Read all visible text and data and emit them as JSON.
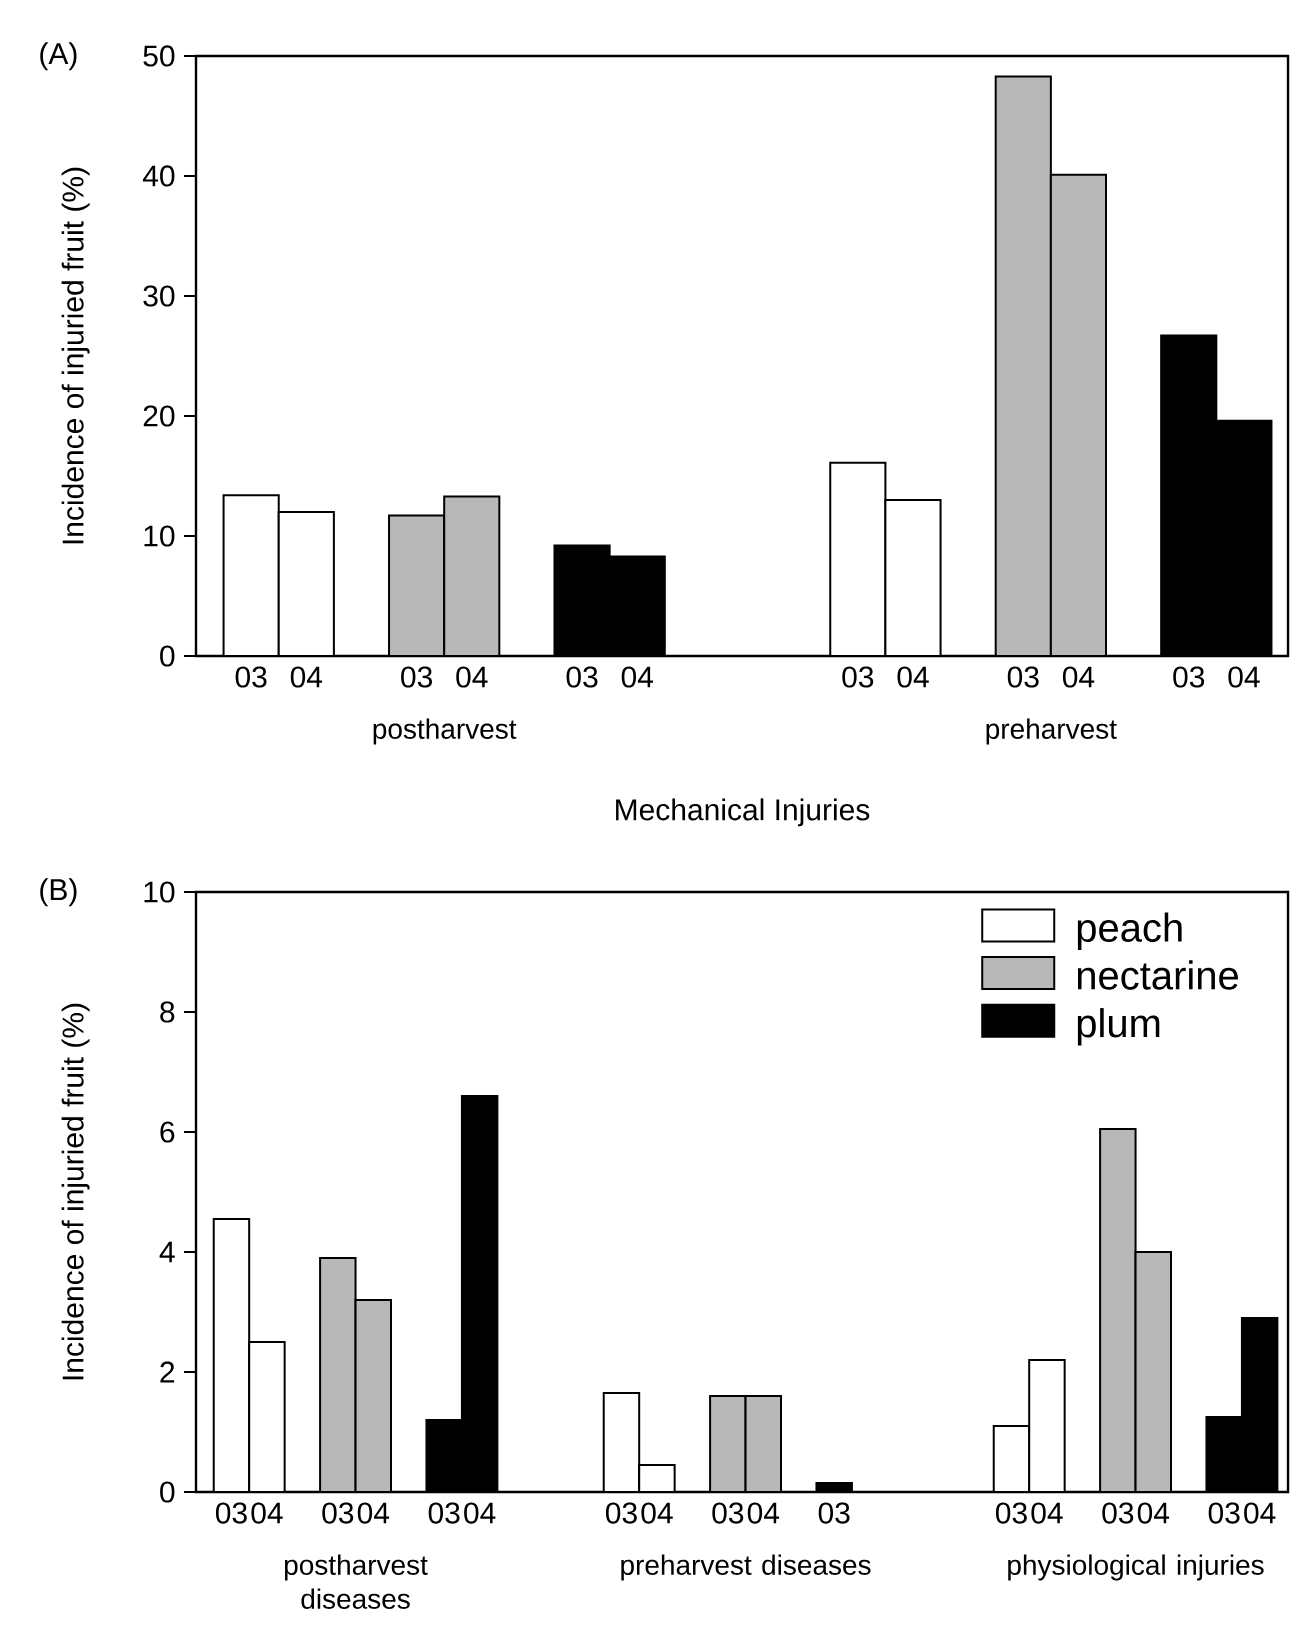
{
  "chart_data": [
    {
      "type": "bar",
      "categories": [
        "03",
        "04",
        null,
        "03",
        "04",
        null,
        "03",
        "04",
        null,
        null,
        null,
        "03",
        "04",
        null,
        "03",
        "04",
        null,
        "03",
        "04"
      ],
      "series": [
        {
          "color": "#ffffff",
          "values": [
            13.4,
            12.0,
            null,
            null,
            null,
            null,
            null,
            null,
            null,
            null,
            null,
            16.1,
            13.0,
            null,
            null,
            null,
            null,
            null,
            null
          ]
        },
        {
          "color": "#b8b8b8",
          "values": [
            null,
            null,
            null,
            11.7,
            13.3,
            null,
            null,
            null,
            null,
            null,
            null,
            null,
            null,
            null,
            48.3,
            40.1,
            null,
            null,
            null
          ]
        },
        {
          "color": "#000000",
          "values": [
            null,
            null,
            null,
            null,
            null,
            null,
            9.2,
            8.3,
            null,
            null,
            null,
            null,
            null,
            null,
            null,
            null,
            null,
            26.7,
            19.6
          ]
        }
      ],
      "xlabel": "Mechanical Injuries",
      "ylabel": "Incidence of injuried fruit (%)",
      "annotations": [
        "(A)",
        "postharvest",
        "preharvest"
      ],
      "ylim": [
        0,
        50
      ],
      "yticks": [
        0,
        10,
        20,
        30,
        40,
        50
      ]
    },
    {
      "type": "bar",
      "categories": [
        "03",
        "04",
        null,
        "03",
        "04",
        null,
        "03",
        "04",
        null,
        null,
        null,
        "03",
        "04",
        null,
        "03",
        "04",
        null,
        "03",
        null,
        null,
        null,
        null,
        "03",
        "04",
        null,
        "03",
        "04",
        null,
        "03",
        "04"
      ],
      "series": [
        {
          "name": "peach",
          "color": "#ffffff",
          "values": [
            4.55,
            2.5,
            null,
            null,
            null,
            null,
            null,
            null,
            null,
            null,
            null,
            1.65,
            0.45,
            null,
            null,
            null,
            null,
            null,
            null,
            null,
            null,
            null,
            1.1,
            2.2,
            null,
            null,
            null,
            null,
            null,
            null
          ]
        },
        {
          "name": "nectarine",
          "color": "#b8b8b8",
          "values": [
            null,
            null,
            null,
            3.9,
            3.2,
            null,
            null,
            null,
            null,
            null,
            null,
            null,
            null,
            null,
            1.6,
            1.6,
            null,
            null,
            null,
            null,
            null,
            null,
            null,
            null,
            null,
            6.05,
            4.0,
            null,
            null,
            null
          ]
        },
        {
          "name": "plum",
          "color": "#000000",
          "values": [
            null,
            null,
            null,
            null,
            null,
            null,
            1.2,
            6.6,
            null,
            null,
            null,
            null,
            null,
            null,
            null,
            null,
            null,
            0.15,
            null,
            null,
            null,
            null,
            null,
            null,
            null,
            null,
            null,
            null,
            1.25,
            2.9
          ]
        }
      ],
      "ylabel": "Incidence of injuried fruit (%)",
      "annotations": [
        "(B)",
        "postharvest diseases",
        "preharvest diseases",
        "physiological injuries"
      ],
      "ylim": [
        0,
        10
      ],
      "yticks": [
        0,
        2,
        4,
        6,
        8,
        10
      ],
      "legend": "top right"
    }
  ]
}
